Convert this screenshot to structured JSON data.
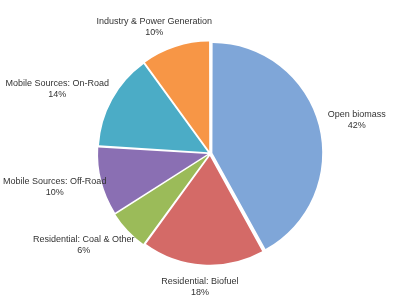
{
  "chart_data": {
    "type": "pie",
    "categories": [
      "Open biomass",
      "Residential: Biofuel",
      "Residential: Coal & Other",
      "Mobile Sources: Off-Road",
      "Mobile Sources: On-Road",
      "Industry & Power Generation"
    ],
    "values": [
      42,
      18,
      6,
      10,
      14,
      10
    ],
    "value_labels": [
      "42%",
      "18%",
      "6%",
      "10%",
      "14%",
      "10%"
    ],
    "colors": [
      "#7fa6d8",
      "#d46a67",
      "#9bbb59",
      "#8a6fb3",
      "#4bacc6",
      "#f79646"
    ],
    "data_labels": true
  }
}
